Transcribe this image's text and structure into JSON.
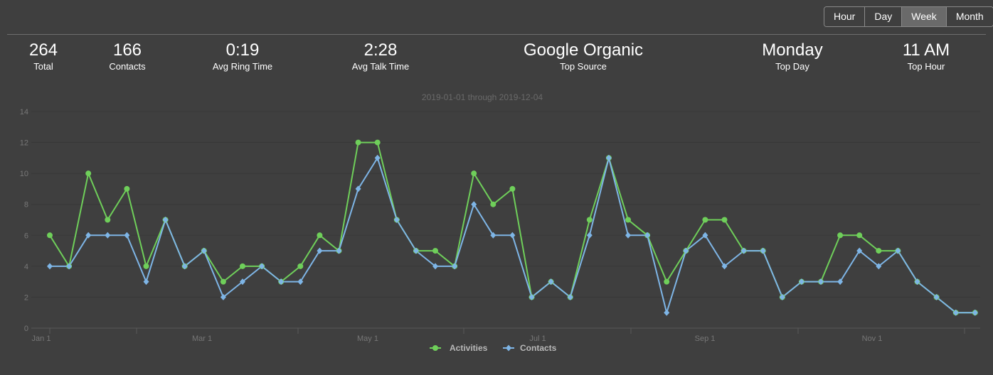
{
  "range_selector": {
    "options": [
      "Hour",
      "Day",
      "Week",
      "Month"
    ],
    "selected": "Week"
  },
  "stats": [
    {
      "value": "264",
      "label": "Total"
    },
    {
      "value": "166",
      "label": "Contacts"
    },
    {
      "value": "0:19",
      "label": "Avg Ring Time"
    },
    {
      "value": "2:28",
      "label": "Avg Talk Time"
    },
    {
      "value": "Google Organic",
      "label": "Top Source"
    },
    {
      "value": "Monday",
      "label": "Top Day"
    },
    {
      "value": "11 AM",
      "label": "Top Hour"
    }
  ],
  "colors": {
    "background": "#3f3f3f",
    "activities": "#6fcf5a",
    "contacts": "#7eb5e6",
    "gridline": "#383838",
    "axis_text": "#777777"
  },
  "chart_data": {
    "type": "line",
    "subtitle": "2019-01-01 through 2019-12-04",
    "x_tick_labels": [
      "Jan 1",
      "Mar 1",
      "May 1",
      "Jul 1",
      "Sep 1",
      "Nov 1"
    ],
    "ylim": [
      0,
      14
    ],
    "y_ticks": [
      0,
      2,
      4,
      6,
      8,
      10,
      12,
      14
    ],
    "grid": true,
    "legend_position": "bottom-center",
    "series": [
      {
        "name": "Activities",
        "marker": "circle",
        "values": [
          6,
          4,
          10,
          7,
          9,
          4,
          7,
          4,
          5,
          3,
          4,
          4,
          3,
          4,
          6,
          5,
          12,
          12,
          7,
          5,
          5,
          4,
          10,
          8,
          9,
          2,
          3,
          2,
          7,
          11,
          7,
          6,
          3,
          5,
          7,
          7,
          5,
          5,
          2,
          3,
          3,
          6,
          6,
          5,
          5,
          3,
          2,
          1,
          1
        ]
      },
      {
        "name": "Contacts",
        "marker": "diamond",
        "values": [
          4,
          4,
          6,
          6,
          6,
          3,
          7,
          4,
          5,
          2,
          3,
          4,
          3,
          3,
          5,
          5,
          9,
          11,
          7,
          5,
          4,
          4,
          8,
          6,
          6,
          2,
          3,
          2,
          6,
          11,
          6,
          6,
          1,
          5,
          6,
          4,
          5,
          5,
          2,
          3,
          3,
          3,
          5,
          4,
          5,
          3,
          2,
          1,
          1
        ]
      }
    ]
  }
}
